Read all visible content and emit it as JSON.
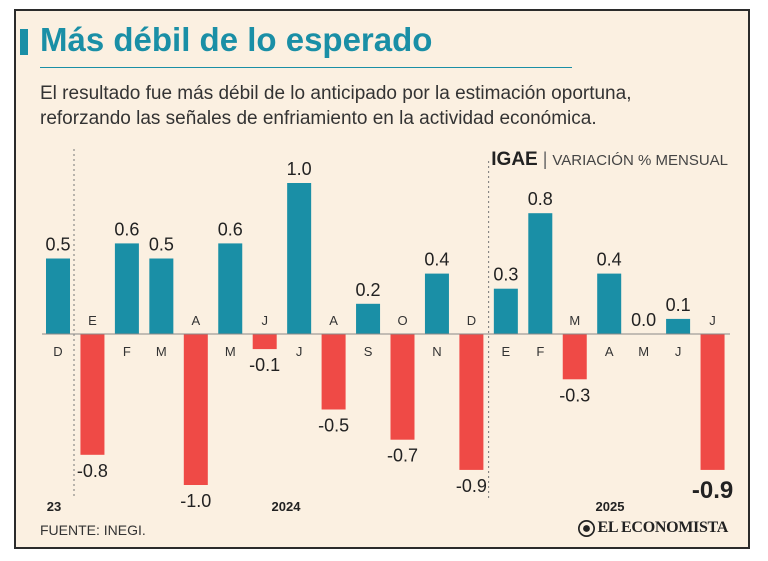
{
  "header": {
    "title": "Más débil de lo esperado",
    "subtitle_line1": "El resultado fue más débil de lo anticipado por la estimación oportuna,",
    "subtitle_line2": "reforzando las señales de enfriamiento en la actividad económica.",
    "indicator_name": "IGAE",
    "indicator_separator": "|",
    "indicator_desc": "VARIACIÓN % MENSUAL"
  },
  "footer": {
    "source": "FUENTE: INEGI.",
    "brand": "EL ECONOMISTA"
  },
  "colors": {
    "positive": "#1a8fa6",
    "negative": "#ef4a46",
    "text": "#222222",
    "background": "#fbf0e1"
  },
  "chart_data": {
    "type": "bar",
    "title": "IGAE | VARIACIÓN % MENSUAL",
    "xlabel": "",
    "ylabel": "",
    "ylim": [
      -1.0,
      1.0
    ],
    "categories": [
      "D",
      "E",
      "F",
      "M",
      "A",
      "M",
      "J",
      "J",
      "A",
      "S",
      "O",
      "N",
      "D",
      "E",
      "F",
      "M",
      "A",
      "M",
      "J",
      "J"
    ],
    "values": [
      0.5,
      -0.8,
      0.6,
      0.5,
      -1.0,
      0.6,
      -0.1,
      1.0,
      -0.5,
      0.2,
      -0.7,
      0.4,
      -0.9,
      0.3,
      0.8,
      -0.3,
      0.4,
      0.0,
      0.1,
      -0.9
    ],
    "labels": [
      "0.5",
      "-0.8",
      "0.6",
      "0.5",
      "-1.0",
      "0.6",
      "-0.1",
      "1.0",
      "-0.5",
      "0.2",
      "-0.7",
      "0.4",
      "-0.9",
      "0.3",
      "0.8",
      "-0.3",
      "0.4",
      "0.0",
      "0.1",
      "-0.9"
    ],
    "years": [
      {
        "label": "23",
        "start_index": 0
      },
      {
        "label": "2024",
        "start_index": 1
      },
      {
        "label": "2025",
        "start_index": 13
      }
    ],
    "year_dividers_before_index": [
      1,
      13
    ],
    "highlight_index": 19,
    "grid": false
  }
}
